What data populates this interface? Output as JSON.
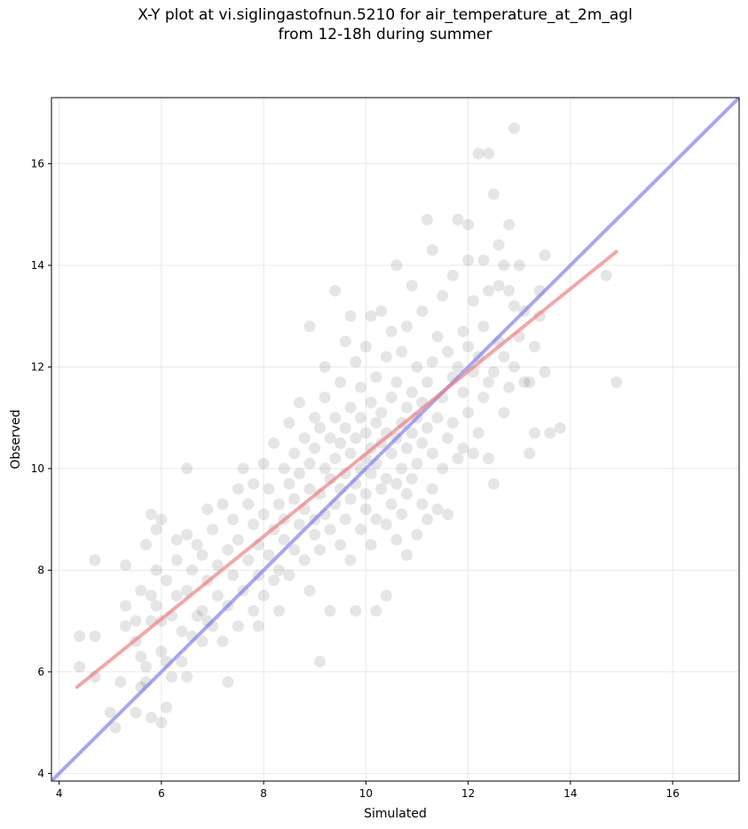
{
  "chart_data": {
    "type": "scatter",
    "title_line1": "X-Y plot at vi.siglingastofnun.5210 for air_temperature_at_2m_agl",
    "title_line2": "from 12-18h during summer",
    "xlabel": "Simulated",
    "ylabel": "Observed",
    "xlim": [
      3.85,
      17.3
    ],
    "ylim": [
      3.85,
      17.3
    ],
    "xticks": [
      4,
      6,
      8,
      10,
      12,
      14,
      16
    ],
    "yticks": [
      4,
      6,
      8,
      10,
      12,
      14,
      16
    ],
    "grid": true,
    "points": [
      [
        4.4,
        6.7
      ],
      [
        4.4,
        6.1
      ],
      [
        4.7,
        6.7
      ],
      [
        4.7,
        5.9
      ],
      [
        4.7,
        8.2
      ],
      [
        5.0,
        5.2
      ],
      [
        5.1,
        4.9
      ],
      [
        5.2,
        5.8
      ],
      [
        5.3,
        6.9
      ],
      [
        5.3,
        7.3
      ],
      [
        5.3,
        8.1
      ],
      [
        5.5,
        5.2
      ],
      [
        5.5,
        6.6
      ],
      [
        5.5,
        7.0
      ],
      [
        5.6,
        5.7
      ],
      [
        5.6,
        6.3
      ],
      [
        5.6,
        7.6
      ],
      [
        5.7,
        5.8
      ],
      [
        5.7,
        6.1
      ],
      [
        5.7,
        8.5
      ],
      [
        5.8,
        5.1
      ],
      [
        5.8,
        7.0
      ],
      [
        5.8,
        7.5
      ],
      [
        5.8,
        9.1
      ],
      [
        5.9,
        7.3
      ],
      [
        5.9,
        8.0
      ],
      [
        5.9,
        8.8
      ],
      [
        6.0,
        5.0
      ],
      [
        6.0,
        6.4
      ],
      [
        6.0,
        7.0
      ],
      [
        6.0,
        9.0
      ],
      [
        6.1,
        5.3
      ],
      [
        6.1,
        6.2
      ],
      [
        6.1,
        7.8
      ],
      [
        6.2,
        5.9
      ],
      [
        6.2,
        7.1
      ],
      [
        6.3,
        8.2
      ],
      [
        6.3,
        8.6
      ],
      [
        6.3,
        7.5
      ],
      [
        6.4,
        6.2
      ],
      [
        6.4,
        6.8
      ],
      [
        6.5,
        5.9
      ],
      [
        6.5,
        7.6
      ],
      [
        6.5,
        10.0
      ],
      [
        6.5,
        8.7
      ],
      [
        6.6,
        8.0
      ],
      [
        6.6,
        6.7
      ],
      [
        6.7,
        7.1
      ],
      [
        6.7,
        8.5
      ],
      [
        6.8,
        6.6
      ],
      [
        6.8,
        7.2
      ],
      [
        6.8,
        8.3
      ],
      [
        6.9,
        7.0
      ],
      [
        6.9,
        7.8
      ],
      [
        6.9,
        9.2
      ],
      [
        7.0,
        6.9
      ],
      [
        7.0,
        8.8
      ],
      [
        7.1,
        7.5
      ],
      [
        7.1,
        8.1
      ],
      [
        7.2,
        6.6
      ],
      [
        7.2,
        9.3
      ],
      [
        7.3,
        5.8
      ],
      [
        7.3,
        7.3
      ],
      [
        7.3,
        8.4
      ],
      [
        7.4,
        7.9
      ],
      [
        7.4,
        9.0
      ],
      [
        7.5,
        6.9
      ],
      [
        7.5,
        8.6
      ],
      [
        7.5,
        9.6
      ],
      [
        7.6,
        7.6
      ],
      [
        7.6,
        10.0
      ],
      [
        7.7,
        8.2
      ],
      [
        7.7,
        9.3
      ],
      [
        7.8,
        7.2
      ],
      [
        7.8,
        8.9
      ],
      [
        7.8,
        9.7
      ],
      [
        7.9,
        7.9
      ],
      [
        7.9,
        8.5
      ],
      [
        7.9,
        6.9
      ],
      [
        8.0,
        9.1
      ],
      [
        8.0,
        10.1
      ],
      [
        8.0,
        7.5
      ],
      [
        8.1,
        8.3
      ],
      [
        8.1,
        9.6
      ],
      [
        8.2,
        8.8
      ],
      [
        8.2,
        7.8
      ],
      [
        8.2,
        10.5
      ],
      [
        8.3,
        9.3
      ],
      [
        8.3,
        8.0
      ],
      [
        8.3,
        7.2
      ],
      [
        8.4,
        10.0
      ],
      [
        8.4,
        8.6
      ],
      [
        8.4,
        9.0
      ],
      [
        8.5,
        9.7
      ],
      [
        8.5,
        7.9
      ],
      [
        8.5,
        10.9
      ],
      [
        8.6,
        8.4
      ],
      [
        8.6,
        9.4
      ],
      [
        8.6,
        10.3
      ],
      [
        8.7,
        8.9
      ],
      [
        8.7,
        9.9
      ],
      [
        8.7,
        11.3
      ],
      [
        8.8,
        8.2
      ],
      [
        8.8,
        9.2
      ],
      [
        8.8,
        10.6
      ],
      [
        8.9,
        7.6
      ],
      [
        8.9,
        9.6
      ],
      [
        8.9,
        10.1
      ],
      [
        8.9,
        12.8
      ],
      [
        9.0,
        8.7
      ],
      [
        9.0,
        9.0
      ],
      [
        9.0,
        10.4
      ],
      [
        9.0,
        11.0
      ],
      [
        9.1,
        6.2
      ],
      [
        9.1,
        8.4
      ],
      [
        9.1,
        9.5
      ],
      [
        9.1,
        10.8
      ],
      [
        9.2,
        9.1
      ],
      [
        9.2,
        10.0
      ],
      [
        9.2,
        11.4
      ],
      [
        9.2,
        12.0
      ],
      [
        9.3,
        7.2
      ],
      [
        9.3,
        8.8
      ],
      [
        9.3,
        9.8
      ],
      [
        9.3,
        10.6
      ],
      [
        9.4,
        9.3
      ],
      [
        9.4,
        10.2
      ],
      [
        9.4,
        11.0
      ],
      [
        9.4,
        13.5
      ],
      [
        9.5,
        8.5
      ],
      [
        9.5,
        9.6
      ],
      [
        9.5,
        10.5
      ],
      [
        9.5,
        11.7
      ],
      [
        9.6,
        9.0
      ],
      [
        9.6,
        9.9
      ],
      [
        9.6,
        10.8
      ],
      [
        9.6,
        12.5
      ],
      [
        9.7,
        8.2
      ],
      [
        9.7,
        9.4
      ],
      [
        9.7,
        10.3
      ],
      [
        9.7,
        11.2
      ],
      [
        9.7,
        13.0
      ],
      [
        9.8,
        7.2
      ],
      [
        9.8,
        9.7
      ],
      [
        9.8,
        10.6
      ],
      [
        9.8,
        12.1
      ],
      [
        9.9,
        8.8
      ],
      [
        9.9,
        10.0
      ],
      [
        9.9,
        11.0
      ],
      [
        9.9,
        11.6
      ],
      [
        10.0,
        9.2
      ],
      [
        10.0,
        9.5
      ],
      [
        10.0,
        10.2
      ],
      [
        10.0,
        10.7
      ],
      [
        10.0,
        12.4
      ],
      [
        10.1,
        8.5
      ],
      [
        10.1,
        9.9
      ],
      [
        10.1,
        10.4
      ],
      [
        10.1,
        11.3
      ],
      [
        10.1,
        13.0
      ],
      [
        10.2,
        7.2
      ],
      [
        10.2,
        9.0
      ],
      [
        10.2,
        10.1
      ],
      [
        10.2,
        10.9
      ],
      [
        10.2,
        11.8
      ],
      [
        10.3,
        9.6
      ],
      [
        10.3,
        10.5
      ],
      [
        10.3,
        11.1
      ],
      [
        10.3,
        13.1
      ],
      [
        10.4,
        7.5
      ],
      [
        10.4,
        8.9
      ],
      [
        10.4,
        9.8
      ],
      [
        10.4,
        10.7
      ],
      [
        10.4,
        12.2
      ],
      [
        10.5,
        9.3
      ],
      [
        10.5,
        10.3
      ],
      [
        10.5,
        11.4
      ],
      [
        10.5,
        12.7
      ],
      [
        10.6,
        8.6
      ],
      [
        10.6,
        9.7
      ],
      [
        10.6,
        10.6
      ],
      [
        10.6,
        11.7
      ],
      [
        10.6,
        14.0
      ],
      [
        10.7,
        9.1
      ],
      [
        10.7,
        10.0
      ],
      [
        10.7,
        10.9
      ],
      [
        10.7,
        12.3
      ],
      [
        10.8,
        8.3
      ],
      [
        10.8,
        9.5
      ],
      [
        10.8,
        10.4
      ],
      [
        10.8,
        11.2
      ],
      [
        10.8,
        12.8
      ],
      [
        10.9,
        9.8
      ],
      [
        10.9,
        10.7
      ],
      [
        10.9,
        11.5
      ],
      [
        10.9,
        13.6
      ],
      [
        11.0,
        8.7
      ],
      [
        11.0,
        10.1
      ],
      [
        11.0,
        11.0
      ],
      [
        11.0,
        12.0
      ],
      [
        11.1,
        9.3
      ],
      [
        11.1,
        10.5
      ],
      [
        11.1,
        11.3
      ],
      [
        11.1,
        13.1
      ],
      [
        11.2,
        9.0
      ],
      [
        11.2,
        10.8
      ],
      [
        11.2,
        11.7
      ],
      [
        11.2,
        14.9
      ],
      [
        11.3,
        9.6
      ],
      [
        11.3,
        10.3
      ],
      [
        11.3,
        12.1
      ],
      [
        11.3,
        14.3
      ],
      [
        11.4,
        9.2
      ],
      [
        11.4,
        11.0
      ],
      [
        11.4,
        12.6
      ],
      [
        11.5,
        10.0
      ],
      [
        11.5,
        11.4
      ],
      [
        11.5,
        13.4
      ],
      [
        11.6,
        9.1
      ],
      [
        11.6,
        10.6
      ],
      [
        11.6,
        12.3
      ],
      [
        11.7,
        10.9
      ],
      [
        11.7,
        11.8
      ],
      [
        11.7,
        13.8
      ],
      [
        11.8,
        10.2
      ],
      [
        11.8,
        12.0
      ],
      [
        11.8,
        14.9
      ],
      [
        11.9,
        10.4
      ],
      [
        11.9,
        11.5
      ],
      [
        11.9,
        12.7
      ],
      [
        12.0,
        11.1
      ],
      [
        12.0,
        12.4
      ],
      [
        12.0,
        14.1
      ],
      [
        12.0,
        14.8
      ],
      [
        12.1,
        10.3
      ],
      [
        12.1,
        11.9
      ],
      [
        12.1,
        13.3
      ],
      [
        12.2,
        10.7
      ],
      [
        12.2,
        12.2
      ],
      [
        12.2,
        16.2
      ],
      [
        12.3,
        11.4
      ],
      [
        12.3,
        12.8
      ],
      [
        12.3,
        14.1
      ],
      [
        12.4,
        10.2
      ],
      [
        12.4,
        11.7
      ],
      [
        12.4,
        13.5
      ],
      [
        12.4,
        16.2
      ],
      [
        12.5,
        9.7
      ],
      [
        12.5,
        11.9
      ],
      [
        12.5,
        15.4
      ],
      [
        12.6,
        12.5
      ],
      [
        12.6,
        13.6
      ],
      [
        12.6,
        14.4
      ],
      [
        12.7,
        11.1
      ],
      [
        12.7,
        12.2
      ],
      [
        12.7,
        14.0
      ],
      [
        12.8,
        11.6
      ],
      [
        12.8,
        13.5
      ],
      [
        12.8,
        14.8
      ],
      [
        12.9,
        12.0
      ],
      [
        12.9,
        13.2
      ],
      [
        12.9,
        16.7
      ],
      [
        13.0,
        12.6
      ],
      [
        13.0,
        14.0
      ],
      [
        13.1,
        11.7
      ],
      [
        13.1,
        13.1
      ],
      [
        13.2,
        10.3
      ],
      [
        13.2,
        11.7
      ],
      [
        13.3,
        12.4
      ],
      [
        13.3,
        10.7
      ],
      [
        13.4,
        13.0
      ],
      [
        13.4,
        13.5
      ],
      [
        13.5,
        11.9
      ],
      [
        13.5,
        14.2
      ],
      [
        13.6,
        10.7
      ],
      [
        13.8,
        10.8
      ],
      [
        14.7,
        13.8
      ],
      [
        14.9,
        11.7
      ]
    ],
    "fit_line": {
      "x": [
        4.35,
        14.9
      ],
      "y": [
        5.7,
        14.27
      ]
    },
    "identity_line": {
      "x": [
        3.85,
        17.3
      ],
      "y": [
        3.85,
        17.3
      ]
    },
    "colors": {
      "points": "#000000",
      "fit_line": "#f08080",
      "identity_line": "#8080f0"
    }
  }
}
